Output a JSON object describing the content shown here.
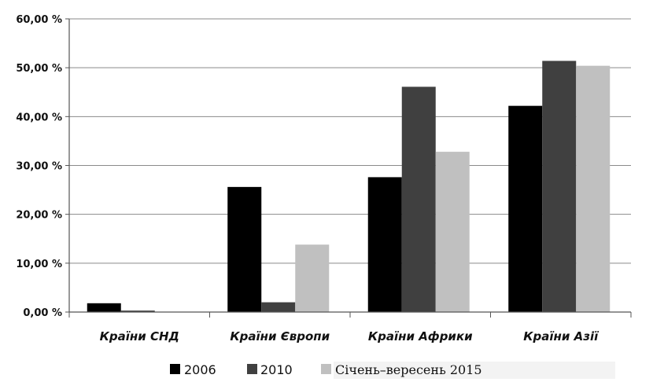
{
  "chart_data": {
    "type": "bar",
    "categories": [
      "Країни СНД",
      "Країни Європи",
      "Країни Африки",
      "Країни Азії"
    ],
    "series": [
      {
        "name": "2006",
        "values": [
          1.8,
          25.6,
          27.6,
          42.2
        ],
        "color": "#000000"
      },
      {
        "name": "2010",
        "values": [
          0.3,
          2.0,
          46.1,
          51.4
        ],
        "color": "#404040"
      },
      {
        "name": "Січень–вересень 2015",
        "values": [
          0.0,
          13.8,
          32.8,
          50.4
        ],
        "color": "#c0c0c0"
      }
    ],
    "y_ticks": [
      "0,00 %",
      "10,00 %",
      "20,00 %",
      "30,00 %",
      "40,00 %",
      "50,00 %",
      "60,00 %"
    ],
    "ylim": [
      0,
      60
    ],
    "grid": true,
    "legend_position": "bottom"
  }
}
